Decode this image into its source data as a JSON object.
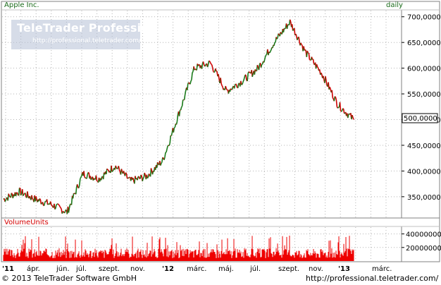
{
  "chart_data": [
    {
      "type": "line",
      "title": "Apple Inc.",
      "interval": "daily",
      "ylim": [
        310,
        712
      ],
      "y_ticks": [
        "350,0000",
        "400,0000",
        "450,0000",
        "500,0000",
        "550,0000",
        "600,0000",
        "650,0000",
        "700,0000"
      ],
      "last_value_label": "500,0000",
      "x_labels": [
        "'11",
        "ápr.",
        "jún.",
        "júl.",
        "szept.",
        "nov.",
        "'12",
        "márc.",
        "máj.",
        "júl.",
        "szept.",
        "nov.",
        "'13",
        "márc."
      ],
      "x": [
        "2011-03",
        "2011-04",
        "2011-05",
        "2011-06",
        "2011-07",
        "2011-08",
        "2011-09",
        "2011-10",
        "2011-11",
        "2011-12",
        "2012-01",
        "2012-02",
        "2012-03",
        "2012-04",
        "2012-05",
        "2012-06",
        "2012-07",
        "2012-08",
        "2012-09",
        "2012-10",
        "2012-11",
        "2012-12",
        "2013-01"
      ],
      "series": [
        {
          "values": [
            345,
            360,
            345,
            335,
            320,
            395,
            385,
            410,
            380,
            390,
            420,
            510,
            600,
            610,
            555,
            575,
            600,
            650,
            690,
            630,
            590,
            530,
            500
          ]
        }
      ],
      "grid": true
    },
    {
      "type": "bar",
      "title": "VolumeUnits",
      "y_ticks": [
        "20000000",
        "40000000"
      ],
      "values_note": ""
    }
  ],
  "watermark": {
    "title": "TeleTrader Professional",
    "url": "http://professional.teletrader.com/"
  },
  "footer": {
    "copyright": "© 2013 TeleTrader Software GmbH",
    "url": "http://professional.teletrader.com/"
  },
  "colors": {
    "up": "#1a7a1a",
    "down": "#cc0000",
    "volume": "#ee0000",
    "grid": "#b4b4b4"
  }
}
